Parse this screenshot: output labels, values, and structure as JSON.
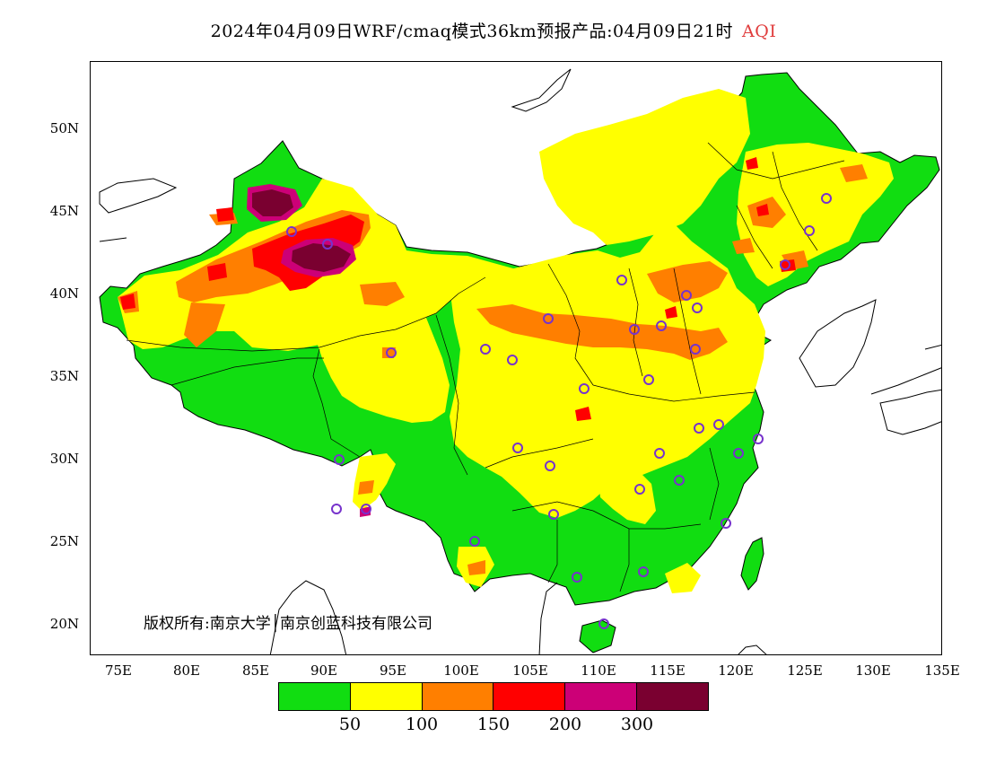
{
  "header": {
    "title": "2024年04月09日WRF/cmaq模式36km预报产品:04月09日21时",
    "variable": "AQI"
  },
  "map": {
    "lat_labels": [
      "50N",
      "45N",
      "40N",
      "35N",
      "30N",
      "25N",
      "20N"
    ],
    "lon_labels": [
      "75E",
      "80E",
      "85E",
      "90E",
      "95E",
      "100E",
      "105E",
      "110E",
      "115E",
      "120E",
      "125E",
      "130E",
      "135E"
    ],
    "lon_range": [
      73,
      135
    ],
    "lat_range": [
      18,
      54
    ],
    "copyright": "版权所有:南京大学│南京创蓝科技有限公司"
  },
  "legend": {
    "colors": [
      "#11dd11",
      "#ffff00",
      "#ff7f00",
      "#ff0000",
      "#cc0077",
      "#7a0030"
    ],
    "values": [
      "50",
      "100",
      "150",
      "200",
      "300"
    ]
  }
}
